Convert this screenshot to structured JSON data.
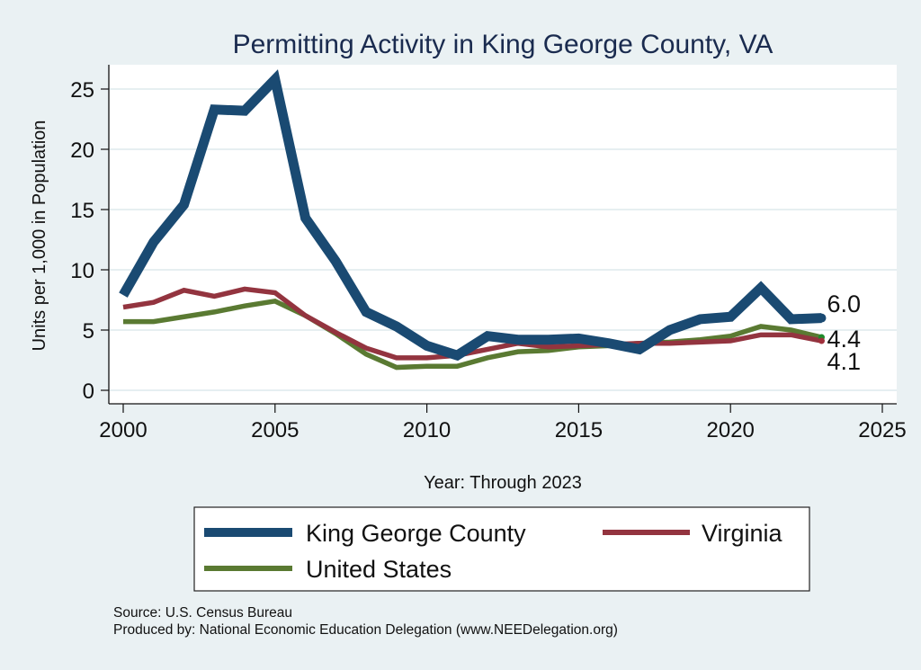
{
  "chart_data": {
    "type": "line",
    "title": "Permitting Activity in King George County, VA",
    "xlabel": "Year: Through 2023",
    "ylabel": "Units per 1,000 in Population",
    "xlim": [
      2000,
      2025
    ],
    "ylim": [
      0,
      25
    ],
    "xticks": [
      2000,
      2005,
      2010,
      2015,
      2020,
      2025
    ],
    "yticks": [
      0,
      5,
      10,
      15,
      20,
      25
    ],
    "grid": "horizontal",
    "legend_position": "bottom",
    "x": [
      2000,
      2001,
      2002,
      2003,
      2004,
      2005,
      2006,
      2007,
      2008,
      2009,
      2010,
      2011,
      2012,
      2013,
      2014,
      2015,
      2016,
      2017,
      2018,
      2019,
      2020,
      2021,
      2022,
      2023
    ],
    "series": [
      {
        "name": "King George County",
        "color": "#1a4a72",
        "values": [
          7.9,
          12.3,
          15.4,
          23.3,
          23.2,
          25.8,
          14.3,
          10.7,
          6.5,
          5.3,
          3.7,
          2.9,
          4.5,
          4.2,
          4.2,
          4.3,
          3.9,
          3.4,
          5.0,
          5.9,
          6.1,
          8.5,
          5.9,
          6.0
        ],
        "end_label": "6.0"
      },
      {
        "name": "Virginia",
        "color": "#93343f",
        "values": [
          6.9,
          7.3,
          8.3,
          7.8,
          8.4,
          8.1,
          6.2,
          4.8,
          3.5,
          2.7,
          2.7,
          2.9,
          3.4,
          3.9,
          3.6,
          3.7,
          3.8,
          3.9,
          3.9,
          4.0,
          4.1,
          4.6,
          4.6,
          4.1
        ],
        "end_label": "4.1"
      },
      {
        "name": "United States",
        "color": "#5a7a32",
        "values": [
          5.7,
          5.7,
          6.1,
          6.5,
          7.0,
          7.4,
          6.2,
          4.7,
          3.0,
          1.9,
          2.0,
          2.0,
          2.7,
          3.2,
          3.3,
          3.6,
          3.7,
          3.9,
          4.0,
          4.2,
          4.5,
          5.3,
          5.0,
          4.4
        ],
        "end_label": "4.4"
      }
    ],
    "notes": [
      "Source: U.S. Census Bureau",
      "Produced by: National Economic Education Delegation (www.NEEDelegation.org)"
    ]
  }
}
